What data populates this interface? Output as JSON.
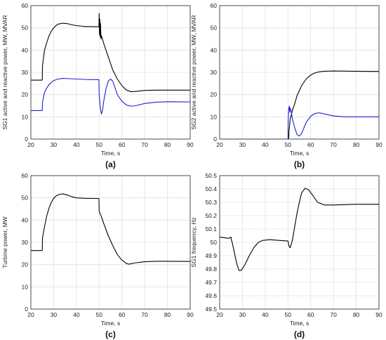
{
  "chart_data": [
    {
      "type": "line",
      "panel_label": "(a)",
      "xlabel": "Time, s",
      "ylabel": "SG1 active and reactive power, MW, MVAR",
      "xlim": [
        20,
        90
      ],
      "ylim": [
        0,
        60
      ],
      "xticks": [
        20,
        30,
        40,
        50,
        60,
        70,
        80,
        90
      ],
      "yticks": [
        0,
        10,
        20,
        30,
        40,
        50,
        60
      ],
      "grid": true,
      "series": [
        {
          "color": "#000000",
          "points": [
            [
              20,
              26.5
            ],
            [
              25,
              26.5
            ],
            [
              25.1,
              33
            ],
            [
              26,
              40
            ],
            [
              27,
              43.5
            ],
            [
              28,
              46.5
            ],
            [
              29,
              48.5
            ],
            [
              30,
              50
            ],
            [
              31,
              51
            ],
            [
              32,
              51.7
            ],
            [
              34,
              52.1
            ],
            [
              36,
              51.9
            ],
            [
              38,
              51.4
            ],
            [
              40,
              51
            ],
            [
              42,
              50.8
            ],
            [
              44,
              50.6
            ],
            [
              46,
              50.6
            ],
            [
              49.9,
              50.5
            ],
            [
              50,
              56.5
            ],
            [
              50.15,
              47
            ],
            [
              50.3,
              54
            ],
            [
              50.45,
              46
            ],
            [
              50.6,
              52
            ],
            [
              50.8,
              45
            ],
            [
              51,
              46.5
            ],
            [
              52,
              43
            ],
            [
              54,
              37
            ],
            [
              56,
              31
            ],
            [
              58,
              27
            ],
            [
              60,
              24
            ],
            [
              62,
              22
            ],
            [
              64,
              21.3
            ],
            [
              66,
              21.4
            ],
            [
              70,
              21.9
            ],
            [
              75,
              22
            ],
            [
              80,
              22
            ],
            [
              90,
              22
            ]
          ]
        },
        {
          "color": "#1f1fd0",
          "points": [
            [
              20,
              12.8
            ],
            [
              25,
              12.8
            ],
            [
              25.1,
              16.5
            ],
            [
              26,
              21
            ],
            [
              27,
              23
            ],
            [
              28,
              24.5
            ],
            [
              29,
              25.5
            ],
            [
              30,
              26.3
            ],
            [
              32,
              27
            ],
            [
              34,
              27.3
            ],
            [
              36,
              27.2
            ],
            [
              40,
              27
            ],
            [
              44,
              26.8
            ],
            [
              48,
              26.7
            ],
            [
              49.9,
              26.7
            ],
            [
              50,
              20
            ],
            [
              50.5,
              14
            ],
            [
              51,
              11.3
            ],
            [
              51.5,
              13
            ],
            [
              52,
              17
            ],
            [
              53,
              22.5
            ],
            [
              54,
              26
            ],
            [
              55,
              27
            ],
            [
              56,
              26
            ],
            [
              57,
              23
            ],
            [
              58,
              20
            ],
            [
              60,
              17
            ],
            [
              62,
              15.3
            ],
            [
              64,
              14.8
            ],
            [
              66,
              15
            ],
            [
              70,
              16
            ],
            [
              75,
              16.6
            ],
            [
              80,
              16.8
            ],
            [
              90,
              16.7
            ]
          ]
        }
      ]
    },
    {
      "type": "line",
      "panel_label": "(b)",
      "xlabel": "Time, s",
      "ylabel": "SG2 active and reactive power, MW, MVAR",
      "xlim": [
        20,
        90
      ],
      "ylim": [
        0,
        60
      ],
      "xticks": [
        20,
        30,
        40,
        50,
        60,
        70,
        80,
        90
      ],
      "yticks": [
        0,
        10,
        20,
        30,
        40,
        50,
        60
      ],
      "grid": true,
      "series": [
        {
          "color": "#000000",
          "points": [
            [
              20,
              0
            ],
            [
              50,
              0
            ],
            [
              50.3,
              0
            ],
            [
              50.5,
              4
            ],
            [
              51,
              9
            ],
            [
              52,
              13
            ],
            [
              53,
              16
            ],
            [
              54,
              19.5
            ],
            [
              56,
              24
            ],
            [
              58,
              27
            ],
            [
              60,
              28.8
            ],
            [
              62,
              29.8
            ],
            [
              64,
              30.3
            ],
            [
              66,
              30.5
            ],
            [
              70,
              30.6
            ],
            [
              80,
              30.5
            ],
            [
              90,
              30.4
            ]
          ]
        },
        {
          "color": "#1f1fd0",
          "points": [
            [
              20,
              0
            ],
            [
              50,
              0
            ],
            [
              50.1,
              8
            ],
            [
              50.3,
              13.5
            ],
            [
              50.6,
              14.8
            ],
            [
              50.8,
              12
            ],
            [
              51,
              14
            ],
            [
              51.5,
              12
            ],
            [
              52,
              9
            ],
            [
              53,
              5
            ],
            [
              54,
              2
            ],
            [
              55,
              1.4
            ],
            [
              56,
              2.5
            ],
            [
              57,
              5
            ],
            [
              58,
              7.5
            ],
            [
              60,
              10.3
            ],
            [
              62,
              11.6
            ],
            [
              64,
              11.8
            ],
            [
              66,
              11.3
            ],
            [
              70,
              10.4
            ],
            [
              75,
              10
            ],
            [
              80,
              10
            ],
            [
              90,
              10
            ]
          ]
        }
      ]
    },
    {
      "type": "line",
      "panel_label": "(c)",
      "xlabel": "Time, s",
      "ylabel": "Turbine power, MW",
      "xlim": [
        20,
        90
      ],
      "ylim": [
        0,
        60
      ],
      "xticks": [
        20,
        30,
        40,
        50,
        60,
        70,
        80,
        90
      ],
      "yticks": [
        0,
        10,
        20,
        30,
        40,
        50,
        60
      ],
      "grid": true,
      "series": [
        {
          "color": "#000000",
          "points": [
            [
              20,
              26.3
            ],
            [
              25,
              26.3
            ],
            [
              25.1,
              32
            ],
            [
              26,
              37
            ],
            [
              27,
              42
            ],
            [
              28,
              45.5
            ],
            [
              29,
              48
            ],
            [
              30,
              49.8
            ],
            [
              31,
              50.8
            ],
            [
              32,
              51.4
            ],
            [
              34,
              51.8
            ],
            [
              36,
              51.3
            ],
            [
              38,
              50.5
            ],
            [
              40,
              50
            ],
            [
              44,
              49.8
            ],
            [
              49.9,
              49.7
            ],
            [
              50,
              44
            ],
            [
              51,
              41.5
            ],
            [
              52,
              38.5
            ],
            [
              54,
              33
            ],
            [
              56,
              28.5
            ],
            [
              58,
              24.5
            ],
            [
              60,
              22
            ],
            [
              62,
              20.5
            ],
            [
              63,
              20.2
            ],
            [
              66,
              20.8
            ],
            [
              70,
              21.3
            ],
            [
              75,
              21.5
            ],
            [
              80,
              21.5
            ],
            [
              90,
              21.4
            ]
          ]
        }
      ]
    },
    {
      "type": "line",
      "panel_label": "(d)",
      "xlabel": "Time, s",
      "ylabel": "SG1 frequency, Hz",
      "xlim": [
        20,
        90
      ],
      "ylim": [
        49.5,
        50.5
      ],
      "xticks": [
        20,
        30,
        40,
        50,
        60,
        70,
        80,
        90
      ],
      "yticks": [
        49.5,
        49.6,
        49.7,
        49.8,
        49.9,
        50,
        50.1,
        50.2,
        50.3,
        50.4,
        50.5
      ],
      "grid": true,
      "series": [
        {
          "color": "#000000",
          "points": [
            [
              20,
              50.04
            ],
            [
              24,
              50.03
            ],
            [
              25,
              50.04
            ],
            [
              25.1,
              50.02
            ],
            [
              25.5,
              50.0
            ],
            [
              26.5,
              49.92
            ],
            [
              27.5,
              49.84
            ],
            [
              28.5,
              49.79
            ],
            [
              29.5,
              49.79
            ],
            [
              31,
              49.83
            ],
            [
              33,
              49.9
            ],
            [
              35,
              49.96
            ],
            [
              37,
              50.0
            ],
            [
              39,
              50.015
            ],
            [
              42,
              50.02
            ],
            [
              46,
              50.015
            ],
            [
              50,
              50.01
            ],
            [
              50.5,
              49.97
            ],
            [
              51,
              49.96
            ],
            [
              52,
              50.02
            ],
            [
              53,
              50.12
            ],
            [
              54,
              50.22
            ],
            [
              55,
              50.3
            ],
            [
              56,
              50.37
            ],
            [
              57.5,
              50.405
            ],
            [
              59,
              50.395
            ],
            [
              61,
              50.35
            ],
            [
              63,
              50.3
            ],
            [
              66,
              50.28
            ],
            [
              70,
              50.28
            ],
            [
              80,
              50.285
            ],
            [
              90,
              50.285
            ]
          ]
        }
      ]
    }
  ]
}
